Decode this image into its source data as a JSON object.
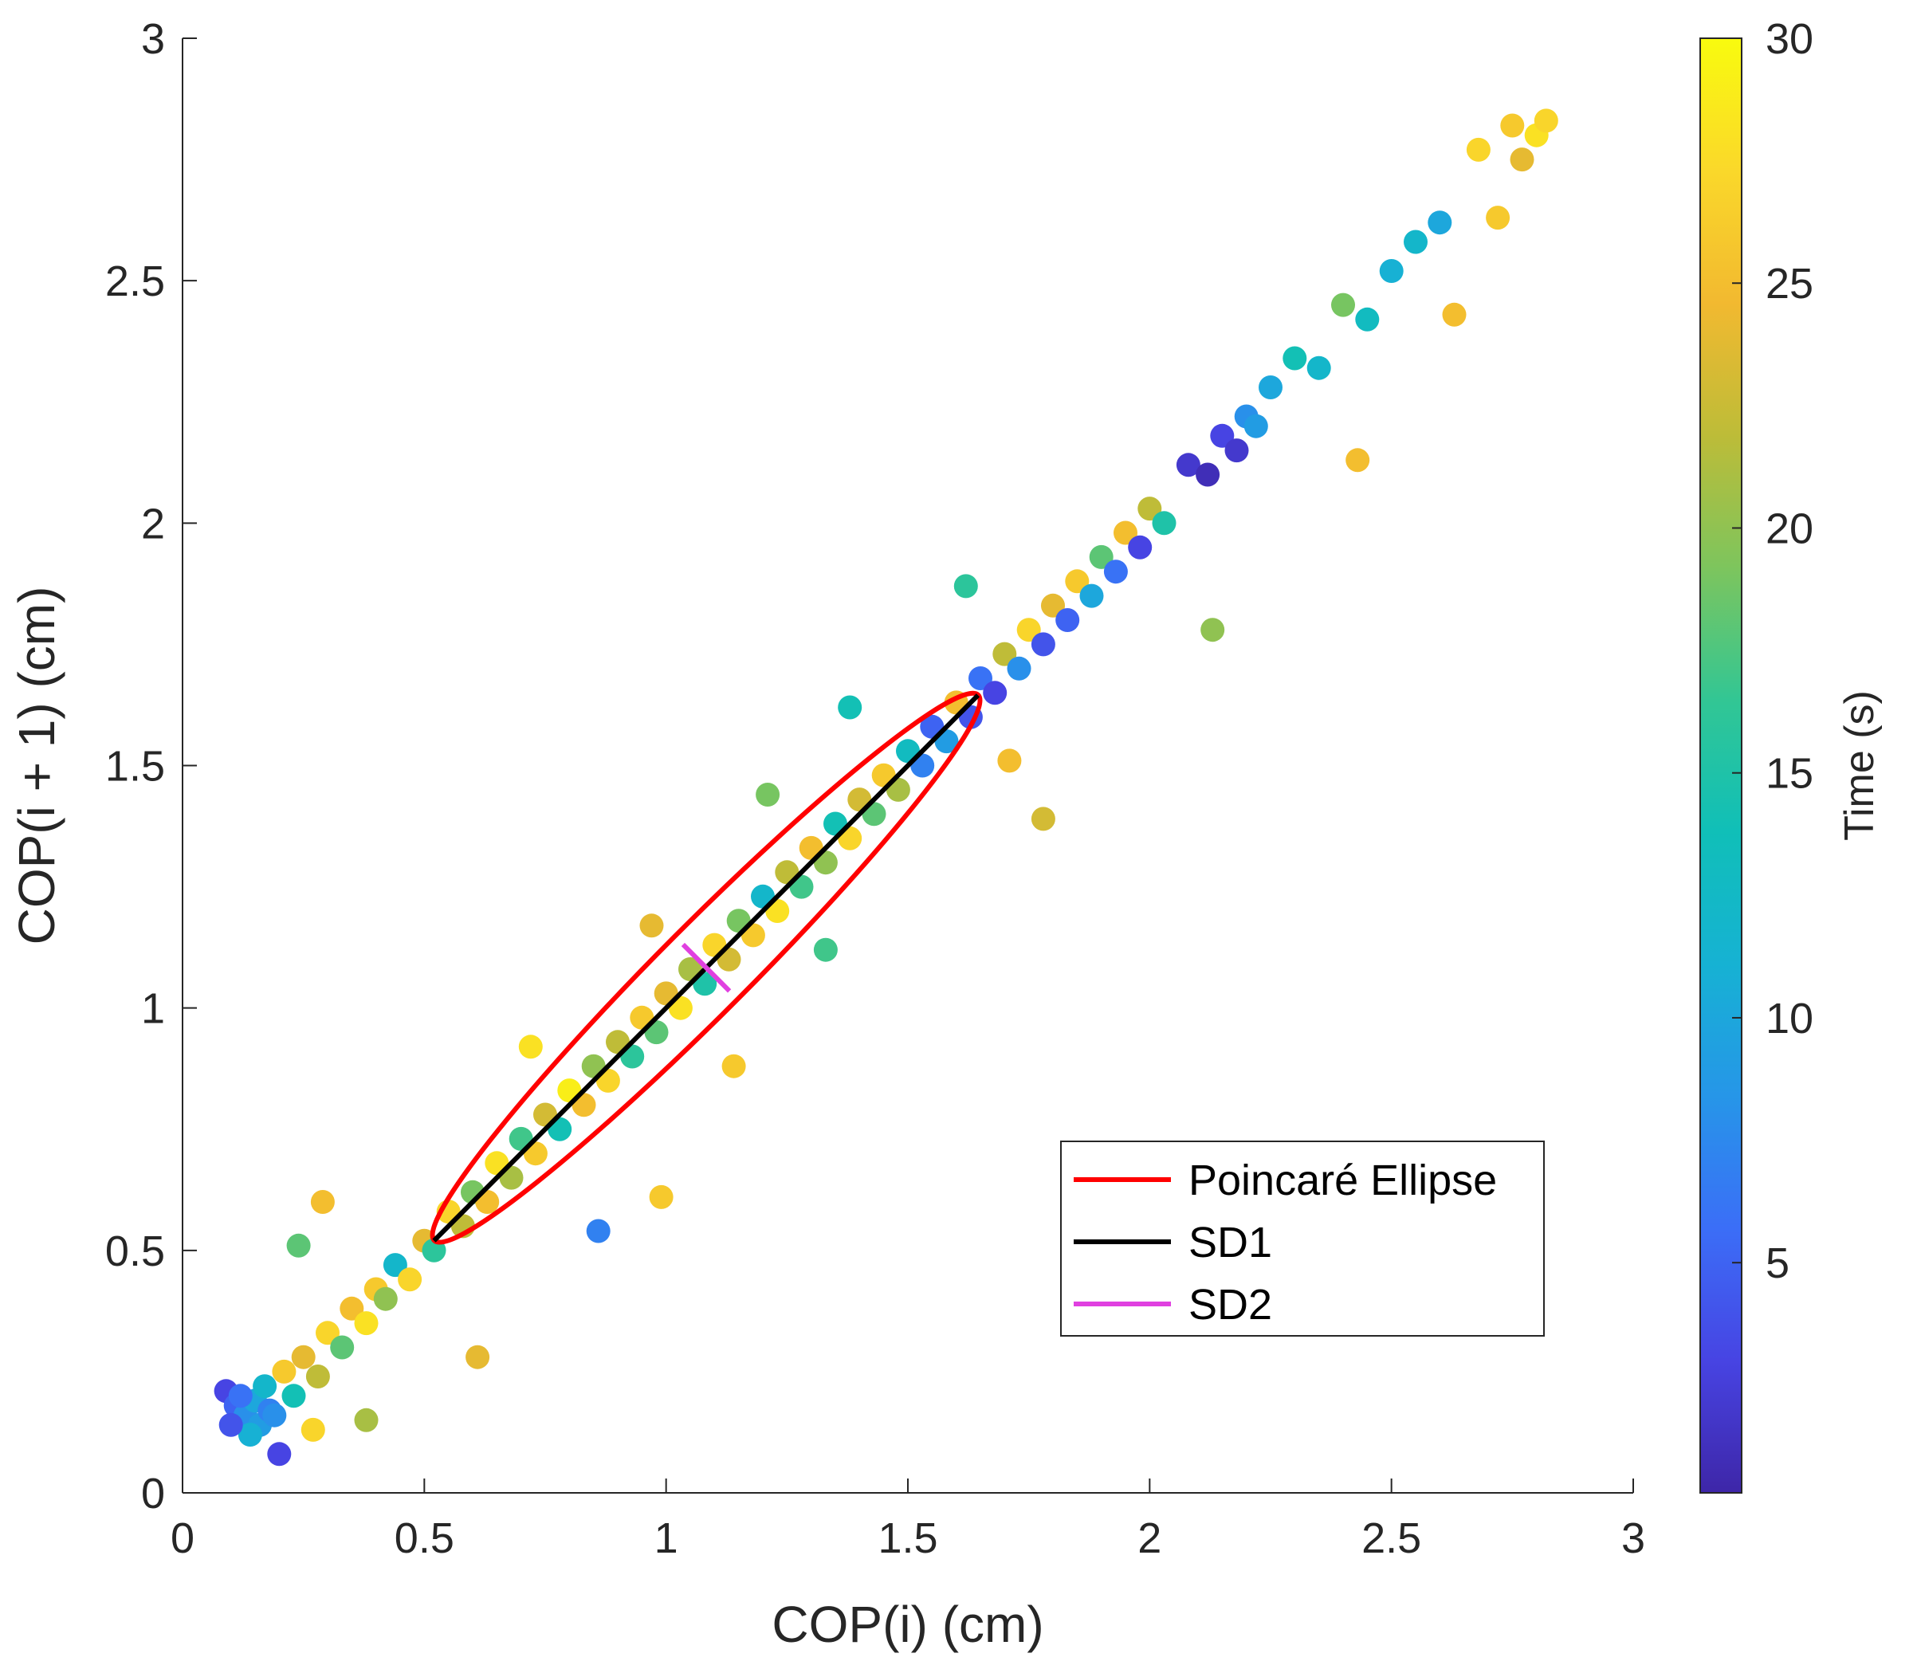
{
  "chart_data": {
    "type": "scatter",
    "title": "",
    "xlabel": "COP(i) (cm)",
    "ylabel": "COP(i + 1) (cm)",
    "xlim": [
      0,
      3
    ],
    "ylim": [
      0,
      3
    ],
    "xticks": [
      "0",
      "0.5",
      "1",
      "1.5",
      "2",
      "2.5",
      "3"
    ],
    "yticks": [
      "0",
      "0.5",
      "1",
      "1.5",
      "2",
      "2.5",
      "3"
    ],
    "colorbar": {
      "label": "Time (s)",
      "range": [
        0.3,
        30
      ],
      "ticks": [
        "5",
        "10",
        "15",
        "20",
        "25",
        "30"
      ],
      "colormap": [
        "#3e26a8",
        "#4744e3",
        "#3b6ef7",
        "#2696e8",
        "#16b2d3",
        "#10bfb8",
        "#32c694",
        "#7dc55d",
        "#bdbc38",
        "#f2b930",
        "#fad82a",
        "#f9fb0e"
      ]
    },
    "series": [
      {
        "name": "COP scatter",
        "points": [
          [
            0.09,
            0.21
          ],
          [
            0.11,
            0.18
          ],
          [
            0.13,
            0.16
          ],
          [
            0.15,
            0.19
          ],
          [
            0.16,
            0.14
          ],
          [
            0.18,
            0.17
          ],
          [
            0.14,
            0.12
          ],
          [
            0.12,
            0.2
          ],
          [
            0.17,
            0.22
          ],
          [
            0.1,
            0.14
          ],
          [
            0.19,
            0.16
          ],
          [
            0.21,
            0.25
          ],
          [
            0.2,
            0.08
          ],
          [
            0.23,
            0.2
          ],
          [
            0.25,
            0.28
          ],
          [
            0.28,
            0.24
          ],
          [
            0.3,
            0.33
          ],
          [
            0.33,
            0.3
          ],
          [
            0.35,
            0.38
          ],
          [
            0.38,
            0.35
          ],
          [
            0.4,
            0.42
          ],
          [
            0.42,
            0.4
          ],
          [
            0.44,
            0.47
          ],
          [
            0.47,
            0.44
          ],
          [
            0.5,
            0.52
          ],
          [
            0.52,
            0.5
          ],
          [
            0.55,
            0.58
          ],
          [
            0.58,
            0.55
          ],
          [
            0.6,
            0.62
          ],
          [
            0.63,
            0.6
          ],
          [
            0.65,
            0.68
          ],
          [
            0.68,
            0.65
          ],
          [
            0.7,
            0.73
          ],
          [
            0.73,
            0.7
          ],
          [
            0.75,
            0.78
          ],
          [
            0.78,
            0.75
          ],
          [
            0.8,
            0.83
          ],
          [
            0.83,
            0.8
          ],
          [
            0.85,
            0.88
          ],
          [
            0.88,
            0.85
          ],
          [
            0.9,
            0.93
          ],
          [
            0.93,
            0.9
          ],
          [
            0.95,
            0.98
          ],
          [
            0.98,
            0.95
          ],
          [
            1.0,
            1.03
          ],
          [
            1.03,
            1.0
          ],
          [
            1.05,
            1.08
          ],
          [
            1.08,
            1.05
          ],
          [
            1.1,
            1.13
          ],
          [
            1.13,
            1.1
          ],
          [
            1.15,
            1.18
          ],
          [
            1.18,
            1.15
          ],
          [
            1.2,
            1.23
          ],
          [
            1.23,
            1.2
          ],
          [
            1.25,
            1.28
          ],
          [
            1.28,
            1.25
          ],
          [
            1.3,
            1.33
          ],
          [
            1.33,
            1.3
          ],
          [
            1.35,
            1.38
          ],
          [
            1.38,
            1.35
          ],
          [
            1.4,
            1.43
          ],
          [
            1.43,
            1.4
          ],
          [
            1.45,
            1.48
          ],
          [
            1.48,
            1.45
          ],
          [
            1.5,
            1.53
          ],
          [
            1.53,
            1.5
          ],
          [
            1.55,
            1.58
          ],
          [
            1.58,
            1.55
          ],
          [
            1.6,
            1.63
          ],
          [
            1.63,
            1.6
          ],
          [
            1.65,
            1.68
          ],
          [
            1.68,
            1.65
          ],
          [
            1.7,
            1.73
          ],
          [
            1.73,
            1.7
          ],
          [
            1.75,
            1.78
          ],
          [
            1.78,
            1.75
          ],
          [
            1.8,
            1.83
          ],
          [
            1.83,
            1.8
          ],
          [
            1.85,
            1.88
          ],
          [
            1.88,
            1.85
          ],
          [
            1.9,
            1.93
          ],
          [
            1.93,
            1.9
          ],
          [
            1.95,
            1.98
          ],
          [
            1.98,
            1.95
          ],
          [
            2.0,
            2.03
          ],
          [
            2.03,
            2.0
          ],
          [
            2.08,
            2.12
          ],
          [
            2.12,
            2.1
          ],
          [
            2.15,
            2.18
          ],
          [
            2.18,
            2.15
          ],
          [
            2.2,
            2.22
          ],
          [
            2.22,
            2.2
          ],
          [
            2.25,
            2.28
          ],
          [
            2.3,
            2.34
          ],
          [
            2.35,
            2.32
          ],
          [
            2.4,
            2.45
          ],
          [
            2.45,
            2.42
          ],
          [
            2.5,
            2.52
          ],
          [
            2.55,
            2.58
          ],
          [
            2.6,
            2.62
          ],
          [
            2.63,
            2.43
          ],
          [
            2.68,
            2.77
          ],
          [
            2.75,
            2.82
          ],
          [
            2.8,
            2.8
          ],
          [
            2.82,
            2.83
          ],
          [
            2.72,
            2.63
          ],
          [
            2.77,
            2.75
          ],
          [
            0.29,
            0.6
          ],
          [
            0.61,
            0.28
          ],
          [
            0.99,
            0.61
          ],
          [
            1.78,
            1.39
          ],
          [
            2.13,
            1.78
          ],
          [
            2.43,
            2.13
          ],
          [
            0.27,
            0.13
          ],
          [
            1.38,
            1.62
          ],
          [
            1.62,
            1.87
          ],
          [
            0.38,
            0.15
          ],
          [
            0.24,
            0.51
          ],
          [
            0.97,
            1.17
          ],
          [
            0.86,
            0.54
          ],
          [
            1.14,
            0.88
          ],
          [
            1.33,
            1.12
          ],
          [
            1.71,
            1.51
          ],
          [
            1.21,
            1.44
          ],
          [
            0.72,
            0.92
          ]
        ],
        "time_values": [
          3,
          5,
          8,
          10,
          9,
          7,
          11,
          6,
          12,
          4,
          8,
          26,
          3,
          14,
          24,
          22,
          27,
          18,
          25,
          28,
          26,
          20,
          12,
          27,
          24,
          16,
          27,
          22,
          19,
          25,
          28,
          21,
          17,
          26,
          23,
          14,
          29,
          25,
          20,
          27,
          22,
          16,
          26,
          18,
          24,
          28,
          21,
          15,
          27,
          23,
          19,
          26,
          12,
          28,
          22,
          17,
          25,
          20,
          14,
          27,
          23,
          18,
          26,
          21,
          13,
          7,
          5,
          9,
          25,
          4,
          6,
          3,
          22,
          8,
          27,
          4,
          24,
          5,
          26,
          10,
          18,
          6,
          25,
          3,
          22,
          15,
          2,
          1,
          3,
          2,
          8,
          9,
          10,
          14,
          12,
          19,
          13,
          11,
          12,
          10,
          25,
          27,
          26,
          28,
          27,
          26,
          24,
          25,
          24,
          26,
          23,
          20,
          25,
          27,
          14,
          16,
          21,
          18,
          24,
          7,
          26,
          17,
          25,
          19,
          28
        ],
        "marker": "circle-filled"
      }
    ],
    "ellipse": {
      "label": "Poincaré Ellipse",
      "color": "#ff0000",
      "center": [
        1.083,
        1.083
      ],
      "major_endpoints": [
        [
          0.52,
          0.52
        ],
        [
          1.645,
          1.645
        ]
      ],
      "minor_half_axis": 0.065
    },
    "sd1": {
      "label": "SD1",
      "color": "#000000",
      "from": [
        0.52,
        0.52
      ],
      "to": [
        1.645,
        1.645
      ]
    },
    "sd2": {
      "label": "SD2",
      "color": "#e040e0",
      "from": [
        1.035,
        1.131
      ],
      "to": [
        1.131,
        1.035
      ]
    },
    "legend": {
      "placement": "lower-right",
      "entries": [
        {
          "label": "Poincaré Ellipse",
          "color": "#ff0000"
        },
        {
          "label": "SD1",
          "color": "#000000"
        },
        {
          "label": "SD2",
          "color": "#e040e0"
        }
      ]
    }
  }
}
